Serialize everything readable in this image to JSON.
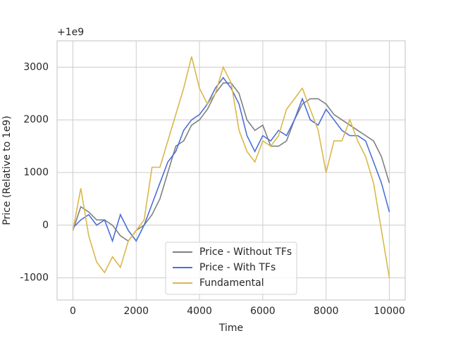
{
  "chart_data": {
    "type": "line",
    "x_label": "Time",
    "y_label": "Price (Relative to 1e9)",
    "offset_text": "+1e9",
    "x": [
      0,
      250,
      500,
      750,
      1000,
      1250,
      1500,
      1750,
      2000,
      2250,
      2500,
      2750,
      3000,
      3250,
      3500,
      3750,
      4000,
      4250,
      4500,
      4750,
      5000,
      5250,
      5500,
      5750,
      6000,
      6250,
      6500,
      6750,
      7000,
      7250,
      7500,
      7750,
      8000,
      8250,
      8500,
      8750,
      9000,
      9250,
      9500,
      9750,
      10000
    ],
    "series": [
      {
        "name": "Price - Without TFs",
        "color": "#808080",
        "values": [
          -100,
          350,
          250,
          100,
          100,
          0,
          -200,
          -300,
          -100,
          0,
          200,
          500,
          1000,
          1500,
          1600,
          1900,
          2000,
          2200,
          2500,
          2700,
          2700,
          2500,
          2000,
          1800,
          1900,
          1500,
          1500,
          1600,
          2000,
          2300,
          2400,
          2400,
          2300,
          2100,
          2000,
          1900,
          1800,
          1700,
          1600,
          1300,
          800
        ]
      },
      {
        "name": "Price - With TFs",
        "color": "#4c6fd8",
        "values": [
          -50,
          100,
          200,
          0,
          100,
          -300,
          200,
          -100,
          -300,
          0,
          400,
          800,
          1200,
          1400,
          1800,
          2000,
          2100,
          2300,
          2600,
          2800,
          2600,
          2300,
          1700,
          1400,
          1700,
          1600,
          1800,
          1700,
          2000,
          2400,
          2000,
          1900,
          2200,
          2000,
          1800,
          1700,
          1700,
          1600,
          1200,
          800,
          250
        ]
      },
      {
        "name": "Fundamental",
        "color": "#d9b84a",
        "values": [
          -100,
          700,
          -200,
          -700,
          -900,
          -600,
          -800,
          -300,
          -100,
          100,
          1100,
          1100,
          1600,
          2100,
          2600,
          3200,
          2600,
          2300,
          2500,
          3000,
          2700,
          1800,
          1400,
          1200,
          1600,
          1500,
          1700,
          2200,
          2400,
          2600,
          2200,
          1800,
          1000,
          1600,
          1600,
          2000,
          1600,
          1300,
          800,
          -100,
          -1000
        ]
      }
    ],
    "xlim": [
      -500,
      10500
    ],
    "ylim": [
      -1420,
      3500
    ],
    "xticks": [
      0,
      2000,
      4000,
      6000,
      8000,
      10000
    ],
    "yticks": [
      -1000,
      0,
      1000,
      2000,
      3000
    ],
    "grid": true,
    "legend_loc": "lower center"
  }
}
